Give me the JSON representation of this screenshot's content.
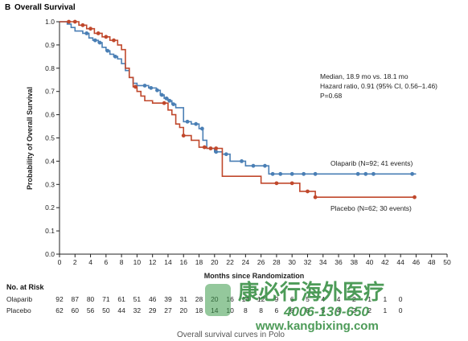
{
  "panel": {
    "letter": "B",
    "title": "Overall Survival"
  },
  "annotation": {
    "line1": "Median, 18.9 mo vs. 18.1 mo",
    "line2": "Hazard ratio, 0.91 (95% CI, 0.56–1.46)",
    "line3": "P=0.68"
  },
  "risk_table": {
    "title": "No. at Risk",
    "rows": [
      {
        "name": "Olaparib",
        "values": [
          "92",
          "87",
          "80",
          "71",
          "61",
          "51",
          "46",
          "39",
          "31",
          "28",
          "20",
          "16",
          "14",
          "12",
          "9",
          "6",
          "5",
          "4",
          "4",
          "2",
          "1",
          "1",
          "0"
        ]
      },
      {
        "name": "Placebo",
        "values": [
          "62",
          "60",
          "56",
          "50",
          "44",
          "32",
          "29",
          "27",
          "20",
          "18",
          "14",
          "10",
          "8",
          "8",
          "6",
          "6",
          "6",
          "5",
          "4",
          "2",
          "2",
          "1",
          "0"
        ]
      }
    ]
  },
  "caption": "Overall survival curves in Polo",
  "watermark": {
    "chinese": "康必行海外医疗",
    "phone": "4006-130-650",
    "url": "www.kangbixing.com"
  },
  "chart_data": {
    "type": "line",
    "title": "Overall Survival",
    "xlabel": "Months since Randomization",
    "ylabel": "Probability of Overall Survival",
    "xlim": [
      0,
      50
    ],
    "ylim": [
      0,
      1.0
    ],
    "xticks": [
      "0",
      "2",
      "4",
      "6",
      "8",
      "10",
      "12",
      "14",
      "16",
      "18",
      "20",
      "22",
      "24",
      "26",
      "28",
      "30",
      "32",
      "34",
      "36",
      "38",
      "40",
      "42",
      "44",
      "46",
      "48",
      "50"
    ],
    "yticks": [
      "0.0",
      "0.1",
      "0.2",
      "0.3",
      "0.4",
      "0.5",
      "0.6",
      "0.7",
      "0.8",
      "0.9",
      "1.0"
    ],
    "grid": false,
    "series": [
      {
        "name": "Olaparib (N=92; 41 events)",
        "color": "#4a7fb5",
        "x": [
          0,
          1.0,
          1.5,
          2.0,
          3.0,
          3.8,
          4.3,
          5.0,
          5.5,
          6.0,
          6.5,
          7.0,
          7.5,
          8.0,
          8.5,
          9.0,
          9.5,
          10.0,
          11.5,
          12.5,
          13.0,
          13.5,
          14.0,
          14.5,
          15.0,
          16.0,
          17.0,
          18.0,
          18.5,
          19.0,
          20.0,
          21.0,
          22.0,
          24.0,
          26.0,
          27.0,
          46.0
        ],
        "y": [
          1.0,
          0.99,
          0.975,
          0.96,
          0.95,
          0.93,
          0.92,
          0.91,
          0.89,
          0.875,
          0.86,
          0.85,
          0.84,
          0.82,
          0.79,
          0.76,
          0.735,
          0.725,
          0.715,
          0.705,
          0.685,
          0.67,
          0.66,
          0.645,
          0.63,
          0.57,
          0.56,
          0.54,
          0.49,
          0.455,
          0.44,
          0.43,
          0.4,
          0.38,
          0.38,
          0.345,
          0.345
        ],
        "censored_x": [
          3.5,
          4.6,
          5.2,
          6.2,
          7.2,
          11.0,
          11.8,
          12.6,
          13.2,
          13.8,
          14.2,
          14.7,
          16.5,
          17.6,
          18.4,
          20.2,
          21.5,
          23.5,
          25.0,
          26.5,
          27.5,
          28.5,
          30.0,
          31.5,
          33.0,
          38.5,
          39.5,
          40.5,
          45.5
        ]
      },
      {
        "name": "Placebo (N=62; 30 events)",
        "color": "#c0482c",
        "x": [
          0,
          2.5,
          3.5,
          4.5,
          5.5,
          6.5,
          7.5,
          8.0,
          8.5,
          9.0,
          9.5,
          10.0,
          10.5,
          11.0,
          12.0,
          14.0,
          14.5,
          15.0,
          15.5,
          16.0,
          17.0,
          18.0,
          19.0,
          21.0,
          26.0,
          31.0,
          33.0,
          46.0
        ],
        "y": [
          1.0,
          0.985,
          0.97,
          0.95,
          0.935,
          0.92,
          0.9,
          0.88,
          0.8,
          0.76,
          0.72,
          0.7,
          0.68,
          0.66,
          0.65,
          0.62,
          0.6,
          0.56,
          0.545,
          0.51,
          0.49,
          0.46,
          0.455,
          0.335,
          0.305,
          0.27,
          0.245,
          0.245
        ],
        "censored_x": [
          1.2,
          2.0,
          3.0,
          4.0,
          5.0,
          6.0,
          7.0,
          9.8,
          13.5,
          16.0,
          18.7,
          19.5,
          20.2,
          28.0,
          30.0,
          32.0,
          33.0,
          45.8
        ]
      }
    ]
  }
}
